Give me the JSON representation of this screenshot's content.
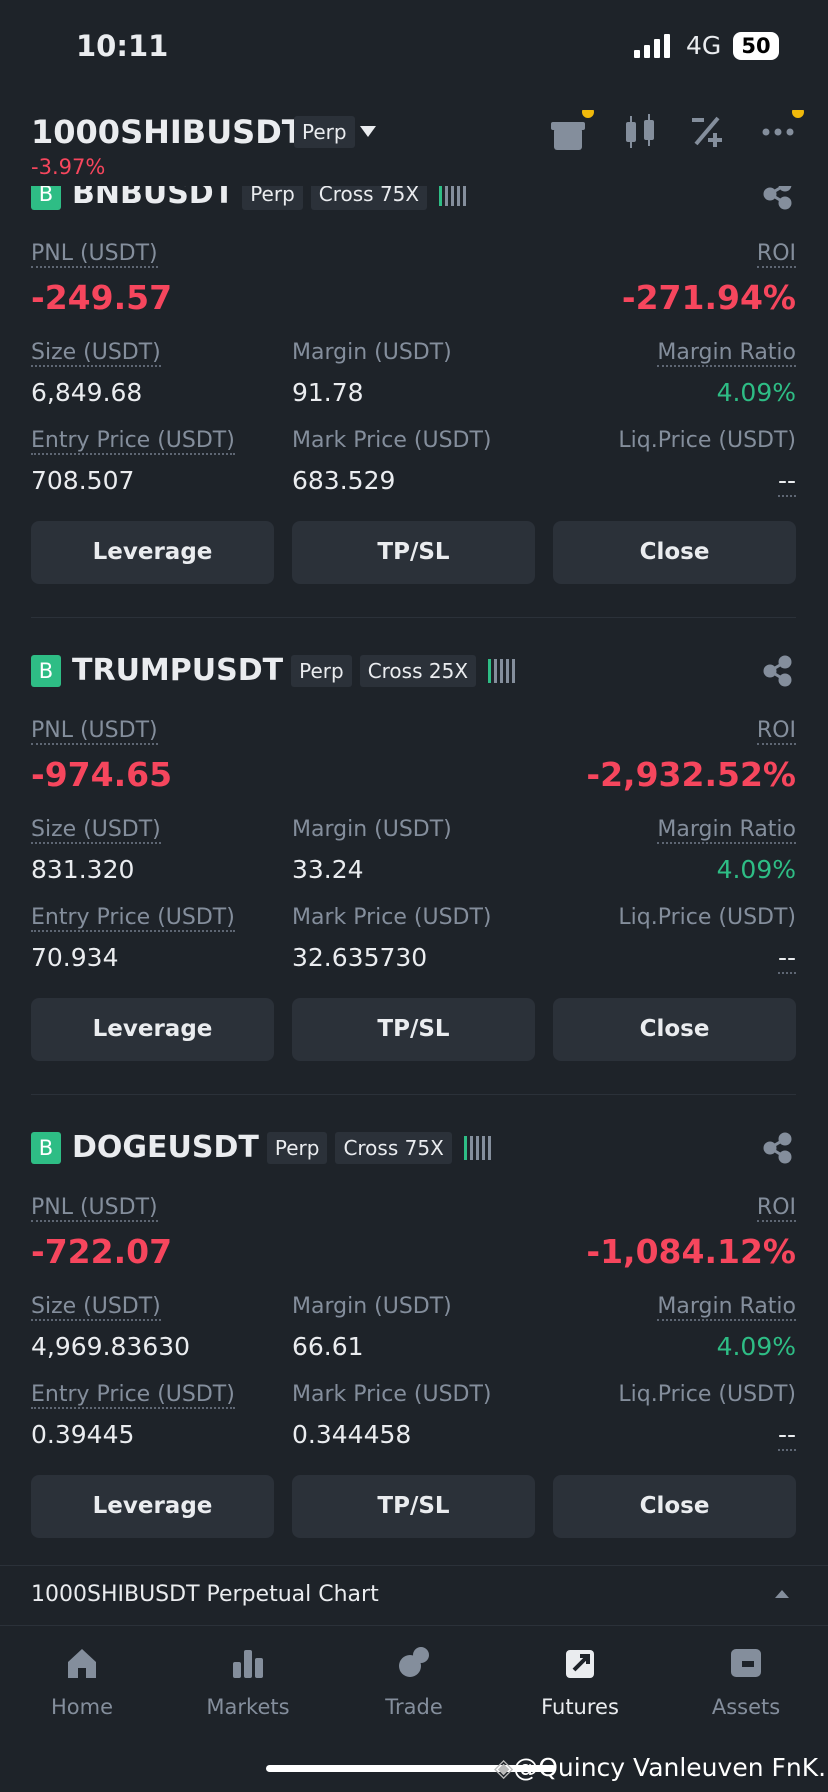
{
  "status_bar": {
    "time": "10:11",
    "network": "4G",
    "battery": "50"
  },
  "header": {
    "symbol": "1000SHIBUSDT",
    "tag": "Perp",
    "change": "-3.97%"
  },
  "labels": {
    "pnl": "PNL (USDT)",
    "roi": "ROI",
    "size": "Size (USDT)",
    "margin": "Margin (USDT)",
    "margin_ratio": "Margin Ratio",
    "entry_price": "Entry Price (USDT)",
    "mark_price": "Mark Price (USDT)",
    "liq_price": "Liq.Price (USDT)"
  },
  "buttons": [
    "Leverage",
    "TP/SL",
    "Close"
  ],
  "positions": [
    {
      "badge": "B",
      "symbol": "BNBUSDT",
      "contract": "Perp",
      "margin_mode": "Cross 75X",
      "pnl": "-249.57",
      "roi": "-271.94%",
      "size": "6,849.68",
      "margin": "91.78",
      "margin_ratio": "4.09%",
      "entry_price": "708.507",
      "mark_price": "683.529",
      "liq_price": "--"
    },
    {
      "badge": "B",
      "symbol": "TRUMPUSDT",
      "contract": "Perp",
      "margin_mode": "Cross 25X",
      "pnl": "-974.65",
      "roi": "-2,932.52%",
      "size": "831.320",
      "margin": "33.24",
      "margin_ratio": "4.09%",
      "entry_price": "70.934",
      "mark_price": "32.635730",
      "liq_price": "--"
    },
    {
      "badge": "B",
      "symbol": "DOGEUSDT",
      "contract": "Perp",
      "margin_mode": "Cross 75X",
      "pnl": "-722.07",
      "roi": "-1,084.12%",
      "size": "4,969.83630",
      "margin": "66.61",
      "margin_ratio": "4.09%",
      "entry_price": "0.39445",
      "mark_price": "0.344458",
      "liq_price": "--"
    }
  ],
  "chart_bar": {
    "title": "1000SHIBUSDT Perpetual  Chart"
  },
  "nav": {
    "items": [
      "Home",
      "Markets",
      "Trade",
      "Futures",
      "Assets"
    ],
    "active": 3
  },
  "watermark": "@Quincy Vanleuven FnK..."
}
